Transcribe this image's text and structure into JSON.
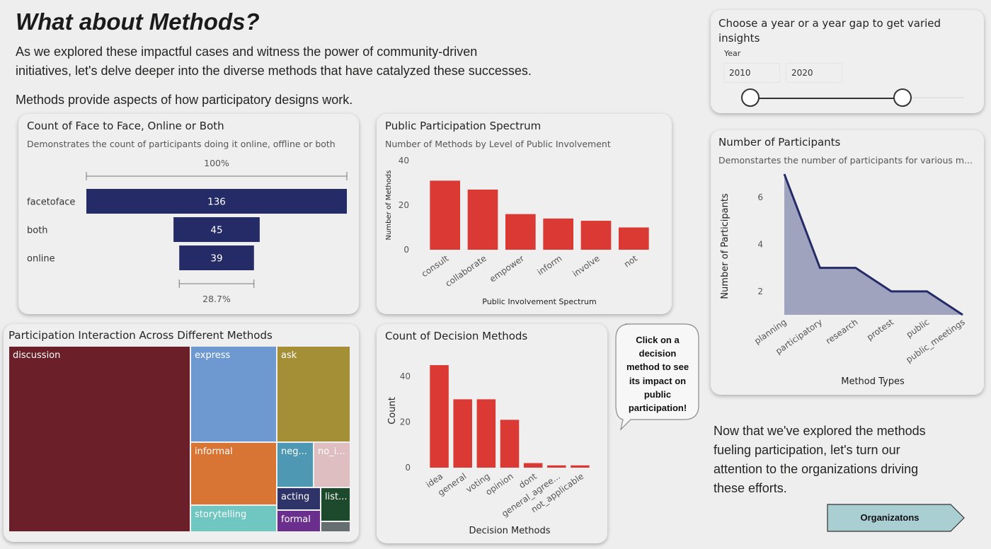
{
  "header": {
    "title": "What about Methods?",
    "intro_line1": "As we explored these impactful cases and witness the power of community-driven",
    "intro_line2": "initiatives, let's delve deeper into the diverse methods that have catalyzed these successes.",
    "sub_intro": "Methods provide aspects of how participatory designs work."
  },
  "slicer": {
    "title_line1": "Choose a year or a year gap to get varied",
    "title_line2": "insights",
    "label": "Year",
    "start_value": "2010",
    "end_value": "2020"
  },
  "funnel": {
    "title": "Count of Face to Face, Online or Both",
    "subtitle": "Demonstrates the count of participants doing it online, offline or both",
    "top_percent": "100%",
    "bottom_percent": "28.7%",
    "bar_color": "#252b67",
    "chart_data": {
      "type": "bar",
      "categories": [
        "facetoface",
        "both",
        "online"
      ],
      "values": [
        136,
        45,
        39
      ],
      "labels": [
        "136",
        "45",
        "39"
      ]
    }
  },
  "spectrum": {
    "title": "Public Participation Spectrum",
    "subtitle": "Number of Methods by Level of Public Involvement",
    "bar_color": "#db3a34",
    "chart_data": {
      "type": "bar",
      "categories": [
        "consult",
        "collaborate",
        "empower",
        "inform",
        "involve",
        "not"
      ],
      "values": [
        31,
        27,
        16,
        14,
        13,
        10
      ],
      "xlabel": "Public Involvement Spectrum",
      "ylabel": "Number of Methods",
      "ylim": [
        0,
        40
      ],
      "yticks": [
        "0",
        "20",
        "40"
      ]
    }
  },
  "participants": {
    "title": "Number of Participants",
    "subtitle": "Demonstartes the number of participants for various m...",
    "fill_color": "#9fa3be",
    "line_color": "#252b67",
    "chart_data": {
      "type": "area",
      "categories": [
        "planning",
        "participatory",
        "research",
        "protest",
        "public",
        "public_meetings"
      ],
      "values": [
        7,
        3,
        3,
        2,
        2,
        1
      ],
      "xlabel": "Method Types",
      "ylabel": "Number of Participants",
      "ylim": [
        1,
        7
      ],
      "yticks": [
        "2",
        "4",
        "6"
      ]
    }
  },
  "treemap": {
    "title": "Participation Interaction Across Different Methods",
    "chart_data": {
      "type": "treemap",
      "items": [
        {
          "name": "discussion",
          "label": "discussion",
          "color": "#6b2029"
        },
        {
          "name": "express",
          "label": "express",
          "color": "#6d99d0"
        },
        {
          "name": "ask",
          "label": "ask",
          "color": "#a58f36"
        },
        {
          "name": "informal",
          "label": "informal",
          "color": "#d87535"
        },
        {
          "name": "storytelling",
          "label": "storytelling",
          "color": "#70c6c0"
        },
        {
          "name": "neg",
          "label": "neg...",
          "color": "#4f98b3"
        },
        {
          "name": "no_i",
          "label": "no_i...",
          "color": "#dfbec2"
        },
        {
          "name": "acting",
          "label": "acting",
          "color": "#2e3467"
        },
        {
          "name": "formal",
          "label": "formal",
          "color": "#6a2e8c"
        },
        {
          "name": "list",
          "label": "list...",
          "color": "#1d4a2c"
        },
        {
          "name": "other",
          "label": "",
          "color": "#666e72"
        }
      ]
    }
  },
  "decision": {
    "title": "Count of Decision Methods",
    "bar_color": "#db3a34",
    "chart_data": {
      "type": "bar",
      "categories": [
        "idea",
        "general",
        "voting",
        "opinion",
        "dont",
        "general_agree...",
        "not_applicable"
      ],
      "values": [
        45,
        30,
        30,
        21,
        2,
        1,
        1
      ],
      "xlabel": "Decision Methods",
      "ylabel": "Count",
      "ylim": [
        0,
        50
      ],
      "yticks": [
        "0",
        "20",
        "40"
      ]
    }
  },
  "callout": {
    "line1": "Click on a",
    "line2": "decision",
    "line3": "method to see",
    "line4": "its impact on",
    "line5": "public",
    "line6": "participation!"
  },
  "outro": {
    "line1": "Now that we've explored the methods",
    "line2": "fueling participation, let's turn our",
    "line3": "attention to the organizations driving",
    "line4": "these efforts."
  },
  "nav_button": {
    "label": "Organizatons",
    "color": "#a9cfd3"
  }
}
